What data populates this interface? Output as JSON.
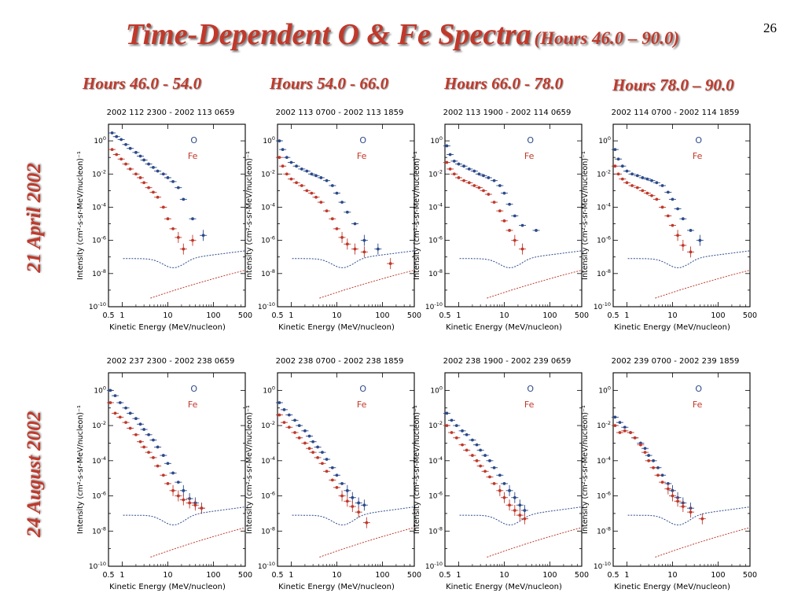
{
  "slide": {
    "title_main": "Time-Dependent O & Fe Spectra",
    "title_sub": "(Hours 46.0 – 90.0)",
    "page_number": "26",
    "column_headers": [
      "Hours 46.0 - 54.0",
      "Hours 54.0 - 66.0",
      "Hours 66.0 - 78.0",
      "Hours 78.0 – 90.0"
    ],
    "row_labels": [
      "21 April 2002",
      "24 August 2002"
    ]
  },
  "colors": {
    "title": "#c0392b",
    "O": "#2c4a8a",
    "Fe": "#c0392b"
  },
  "chart_data": [
    {
      "type": "scatter",
      "panel_title": "2002 112 2300 - 2002 113 0659",
      "ylabel": "Intensity (cm²-s-sr-MeV/nucleon)⁻¹",
      "xlabel": "Kinetic Energy (MeV/nucleon)",
      "x_scale": "log",
      "y_scale": "log",
      "xlim": [
        0.5,
        500
      ],
      "ylim": [
        1e-10,
        10
      ],
      "legend": [
        "O",
        "Fe"
      ],
      "series": [
        {
          "name": "O",
          "x": [
            0.6,
            0.75,
            0.95,
            1.2,
            1.5,
            2,
            2.5,
            3,
            3.8,
            4.8,
            6,
            8,
            10,
            13,
            17,
            22,
            35,
            60
          ],
          "y": [
            3,
            1.8,
            1.2,
            0.6,
            0.35,
            0.2,
            0.12,
            0.07,
            0.04,
            0.025,
            0.015,
            0.01,
            0.006,
            0.0035,
            0.0015,
            0.0003,
            2e-05,
            2e-06
          ]
        },
        {
          "name": "Fe",
          "x": [
            0.6,
            0.75,
            0.95,
            1.2,
            1.5,
            2,
            2.5,
            3,
            3.8,
            4.8,
            6,
            8,
            10,
            13,
            17,
            22,
            35
          ],
          "y": [
            0.3,
            0.15,
            0.08,
            0.04,
            0.02,
            0.01,
            0.006,
            0.003,
            0.0015,
            0.0008,
            0.0004,
            0.0001,
            2e-05,
            5e-06,
            1.5e-06,
            3e-07,
            1e-06
          ]
        }
      ]
    },
    {
      "type": "scatter",
      "panel_title": "2002 113 0700 - 2002 113 1859",
      "ylabel": "Intensity (cm²-s-sr-MeV/nucleon)⁻¹",
      "xlabel": "Kinetic Energy (MeV/nucleon)",
      "x_scale": "log",
      "y_scale": "log",
      "xlim": [
        0.5,
        500
      ],
      "ylim": [
        1e-10,
        10
      ],
      "legend": [
        "O",
        "Fe"
      ],
      "series": [
        {
          "name": "O",
          "x": [
            0.55,
            0.65,
            0.8,
            1,
            1.3,
            1.7,
            2.2,
            2.8,
            3.5,
            4.5,
            6,
            8,
            10,
            13,
            17,
            25,
            40,
            80
          ],
          "y": [
            1,
            0.3,
            0.1,
            0.05,
            0.03,
            0.02,
            0.015,
            0.01,
            0.008,
            0.006,
            0.004,
            0.002,
            0.0007,
            0.0002,
            5e-05,
            1e-05,
            1e-06,
            3e-07
          ]
        },
        {
          "name": "Fe",
          "x": [
            0.55,
            0.65,
            0.8,
            1,
            1.3,
            1.7,
            2.2,
            2.8,
            3.5,
            4.5,
            6,
            8,
            10,
            13,
            17,
            25,
            40,
            150
          ],
          "y": [
            0.1,
            0.03,
            0.01,
            0.005,
            0.003,
            0.002,
            0.001,
            0.0007,
            0.0004,
            0.0002,
            6e-05,
            2e-05,
            5e-06,
            1.5e-06,
            6e-07,
            3e-07,
            2e-07,
            4e-08
          ]
        }
      ]
    },
    {
      "type": "scatter",
      "panel_title": "2002 113 1900 - 2002 114 0659",
      "ylabel": "Intensity (cm²-s-sr-MeV/nucleon)⁻¹",
      "xlabel": "Kinetic Energy (MeV/nucleon)",
      "x_scale": "log",
      "y_scale": "log",
      "xlim": [
        0.5,
        500
      ],
      "ylim": [
        1e-10,
        10
      ],
      "legend": [
        "O",
        "Fe"
      ],
      "series": [
        {
          "name": "O",
          "x": [
            0.55,
            0.65,
            0.8,
            1,
            1.3,
            1.7,
            2.2,
            2.8,
            3.5,
            4.5,
            6,
            8,
            10,
            13,
            17,
            25,
            50
          ],
          "y": [
            0.5,
            0.15,
            0.06,
            0.04,
            0.03,
            0.02,
            0.015,
            0.01,
            0.008,
            0.006,
            0.004,
            0.002,
            0.0007,
            0.00015,
            3e-05,
            8e-06,
            4e-06
          ]
        },
        {
          "name": "Fe",
          "x": [
            0.55,
            0.65,
            0.8,
            1,
            1.3,
            1.7,
            2.2,
            2.8,
            3.5,
            4.5,
            6,
            8,
            10,
            13,
            17,
            25
          ],
          "y": [
            0.05,
            0.02,
            0.01,
            0.006,
            0.004,
            0.003,
            0.002,
            0.0015,
            0.001,
            0.0006,
            0.0002,
            6e-05,
            1.5e-05,
            4e-06,
            1e-06,
            3e-07
          ]
        }
      ]
    },
    {
      "type": "scatter",
      "panel_title": "2002 114 0700 - 2002 114 1859",
      "ylabel": "Intensity (cm²-s-sr-MeV/nucleon)⁻¹",
      "xlabel": "Kinetic Energy (MeV/nucleon)",
      "x_scale": "log",
      "y_scale": "log",
      "xlim": [
        0.5,
        500
      ],
      "ylim": [
        1e-10,
        10
      ],
      "legend": [
        "O",
        "Fe"
      ],
      "series": [
        {
          "name": "O",
          "x": [
            0.55,
            0.65,
            0.8,
            1,
            1.3,
            1.7,
            2.2,
            2.8,
            3.5,
            4.5,
            6,
            8,
            10,
            13,
            17,
            25,
            40
          ],
          "y": [
            0.3,
            0.08,
            0.03,
            0.015,
            0.01,
            0.008,
            0.006,
            0.005,
            0.004,
            0.003,
            0.002,
            0.0008,
            0.0003,
            8e-05,
            2e-05,
            4e-06,
            1e-06
          ]
        },
        {
          "name": "Fe",
          "x": [
            0.55,
            0.65,
            0.8,
            1,
            1.3,
            1.7,
            2.2,
            2.8,
            3.5,
            4.5,
            6,
            8,
            10,
            13,
            17,
            25
          ],
          "y": [
            0.03,
            0.01,
            0.005,
            0.003,
            0.002,
            0.0015,
            0.001,
            0.0007,
            0.0005,
            0.0003,
            0.0001,
            3e-05,
            8e-06,
            2e-06,
            5e-07,
            2e-07
          ]
        }
      ]
    },
    {
      "type": "scatter",
      "panel_title": "2002 237 2300 - 2002 238 0659",
      "ylabel": "Intensity (cm²-s-sr-MeV/nucleon)⁻¹",
      "xlabel": "Kinetic Energy (MeV/nucleon)",
      "x_scale": "log",
      "y_scale": "log",
      "xlim": [
        0.5,
        500
      ],
      "ylim": [
        1e-10,
        10
      ],
      "legend": [
        "O",
        "Fe"
      ],
      "series": [
        {
          "name": "O",
          "x": [
            0.55,
            0.7,
            0.9,
            1.2,
            1.5,
            2,
            2.5,
            3,
            3.8,
            4.8,
            6,
            8,
            10,
            13,
            17,
            22,
            30,
            40,
            55
          ],
          "y": [
            1,
            0.5,
            0.2,
            0.1,
            0.05,
            0.025,
            0.012,
            0.006,
            0.003,
            0.0015,
            0.0006,
            0.0002,
            7e-05,
            2e-05,
            6e-06,
            2e-06,
            7e-07,
            4e-07,
            2e-07
          ]
        },
        {
          "name": "Fe",
          "x": [
            0.55,
            0.7,
            0.9,
            1.2,
            1.5,
            2,
            2.5,
            3,
            3.8,
            4.8,
            6,
            8,
            10,
            13,
            17,
            22,
            30,
            40,
            55
          ],
          "y": [
            0.2,
            0.05,
            0.03,
            0.015,
            0.007,
            0.003,
            0.0012,
            0.0006,
            0.0003,
            0.00015,
            5e-05,
            1.5e-05,
            5e-06,
            2e-06,
            1e-06,
            6e-07,
            4e-07,
            3e-07,
            2e-07
          ]
        }
      ]
    },
    {
      "type": "scatter",
      "panel_title": "2002 238 0700 - 2002 238 1859",
      "ylabel": "Intensity (cm²-s-sr-MeV/nucleon)⁻¹",
      "xlabel": "Kinetic Energy (MeV/nucleon)",
      "x_scale": "log",
      "y_scale": "log",
      "xlim": [
        0.5,
        500
      ],
      "ylim": [
        1e-10,
        10
      ],
      "legend": [
        "O",
        "Fe"
      ],
      "series": [
        {
          "name": "O",
          "x": [
            0.55,
            0.7,
            0.9,
            1.2,
            1.5,
            2,
            2.5,
            3,
            3.8,
            4.8,
            6,
            8,
            10,
            13,
            17,
            22,
            30,
            40
          ],
          "y": [
            0.2,
            0.08,
            0.04,
            0.02,
            0.01,
            0.005,
            0.0025,
            0.0012,
            0.0006,
            0.0003,
            0.00012,
            4e-05,
            1.5e-05,
            5e-06,
            2e-06,
            8e-07,
            4e-07,
            3e-07
          ]
        },
        {
          "name": "Fe",
          "x": [
            0.55,
            0.7,
            0.9,
            1.2,
            1.5,
            2,
            2.5,
            3,
            3.8,
            4.8,
            6,
            8,
            10,
            13,
            17,
            22,
            30,
            45
          ],
          "y": [
            0.04,
            0.015,
            0.008,
            0.004,
            0.002,
            0.001,
            0.0005,
            0.0003,
            0.00015,
            7e-05,
            2.5e-05,
            8e-06,
            3e-06,
            1e-06,
            5e-07,
            2.5e-07,
            1.2e-07,
            3e-08
          ]
        }
      ]
    },
    {
      "type": "scatter",
      "panel_title": "2002 238 1900 - 2002 239 0659",
      "ylabel": "Intensity (cm²-s-sr-MeV/nucleon)⁻¹",
      "xlabel": "Kinetic Energy (MeV/nucleon)",
      "x_scale": "log",
      "y_scale": "log",
      "xlim": [
        0.5,
        500
      ],
      "ylim": [
        1e-10,
        10
      ],
      "legend": [
        "O",
        "Fe"
      ],
      "series": [
        {
          "name": "O",
          "x": [
            0.55,
            0.7,
            0.9,
            1.2,
            1.5,
            2,
            2.5,
            3,
            3.8,
            4.8,
            6,
            8,
            10,
            13,
            17,
            22,
            28
          ],
          "y": [
            0.05,
            0.02,
            0.01,
            0.005,
            0.003,
            0.0015,
            0.0008,
            0.0004,
            0.0002,
            0.0001,
            4e-05,
            1.5e-05,
            5e-06,
            2e-06,
            8e-07,
            3e-07,
            1.5e-07
          ]
        },
        {
          "name": "Fe",
          "x": [
            0.55,
            0.7,
            0.9,
            1.2,
            1.5,
            2,
            2.5,
            3,
            3.8,
            4.8,
            6,
            8,
            10,
            13,
            17,
            22,
            28
          ],
          "y": [
            0.01,
            0.004,
            0.002,
            0.0008,
            0.0004,
            0.0002,
            0.0001,
            5e-05,
            2.5e-05,
            1.2e-05,
            5e-06,
            2e-06,
            8e-07,
            3e-07,
            1.5e-07,
            8e-08,
            5e-08
          ]
        }
      ]
    },
    {
      "type": "scatter",
      "panel_title": "2002 239 0700 - 2002 239 1859",
      "ylabel": "Intensity (cm²-s-sr-MeV/nucleon)⁻¹",
      "xlabel": "Kinetic Energy (MeV/nucleon)",
      "x_scale": "log",
      "y_scale": "log",
      "xlim": [
        0.5,
        500
      ],
      "ylim": [
        1e-10,
        10
      ],
      "legend": [
        "O",
        "Fe"
      ],
      "series": [
        {
          "name": "O",
          "x": [
            0.55,
            0.7,
            0.9,
            1.2,
            1.5,
            2,
            2.5,
            3,
            3.8,
            4.8,
            6,
            8,
            10,
            13,
            17,
            25
          ],
          "y": [
            0.03,
            0.015,
            0.008,
            0.004,
            0.002,
            0.001,
            0.0005,
            0.0002,
            0.0001,
            4e-05,
            1.5e-05,
            5e-06,
            2e-06,
            8e-07,
            4e-07,
            2e-07
          ]
        },
        {
          "name": "Fe",
          "x": [
            0.55,
            0.7,
            0.9,
            1.2,
            1.5,
            2,
            2.5,
            3,
            3.8,
            4.8,
            6,
            8,
            10,
            13,
            17,
            25,
            45
          ],
          "y": [
            0.01,
            0.004,
            0.005,
            0.004,
            0.002,
            0.0008,
            0.0003,
            0.0001,
            4e-05,
            1.5e-05,
            6e-06,
            2.5e-06,
            1e-06,
            5e-07,
            2.5e-07,
            1.2e-07,
            5e-08
          ]
        }
      ]
    }
  ]
}
